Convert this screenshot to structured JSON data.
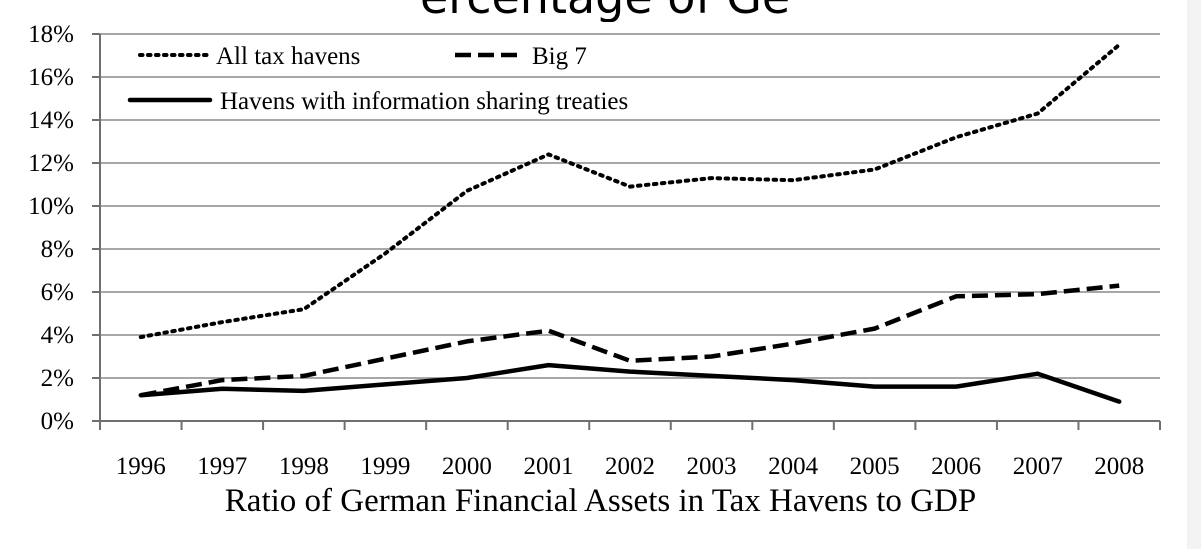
{
  "header_fragment": "ercentage of Ge",
  "chart_data": {
    "type": "line",
    "title": "",
    "xlabel": "Ratio of German Financial Assets in Tax Havens to GDP",
    "ylabel": "",
    "x": [
      1996,
      1997,
      1998,
      1999,
      2000,
      2001,
      2002,
      2003,
      2004,
      2005,
      2006,
      2007,
      2008
    ],
    "x_tick_labels": [
      "1996",
      "1997",
      "1998",
      "1999",
      "2000",
      "2001",
      "2002",
      "2003",
      "2004",
      "2005",
      "2006",
      "2007",
      "2008"
    ],
    "ylim": [
      0,
      18
    ],
    "y_ticks": [
      0,
      2,
      4,
      6,
      8,
      10,
      12,
      14,
      16,
      18
    ],
    "y_tick_labels": [
      "0%",
      "2%",
      "4%",
      "6%",
      "8%",
      "10%",
      "12%",
      "14%",
      "16%",
      "18%"
    ],
    "y_unit": "%",
    "grid": "horizontal",
    "legend_placement": "top-left",
    "series": [
      {
        "name": "All tax havens",
        "style": "dotted",
        "color": "#000000",
        "values": [
          3.9,
          4.6,
          5.2,
          7.8,
          10.7,
          12.4,
          10.9,
          11.3,
          11.2,
          11.7,
          13.2,
          14.3,
          17.5
        ]
      },
      {
        "name": "Big 7",
        "style": "dashed",
        "color": "#000000",
        "values": [
          1.2,
          1.9,
          2.1,
          2.9,
          3.7,
          4.2,
          2.8,
          3.0,
          3.6,
          4.3,
          5.8,
          5.9,
          6.3
        ]
      },
      {
        "name": "Havens with information sharing treaties",
        "style": "solid",
        "color": "#000000",
        "values": [
          1.2,
          1.5,
          1.4,
          1.7,
          2.0,
          2.6,
          2.3,
          2.1,
          1.9,
          1.6,
          1.6,
          2.2,
          0.9
        ]
      }
    ]
  }
}
